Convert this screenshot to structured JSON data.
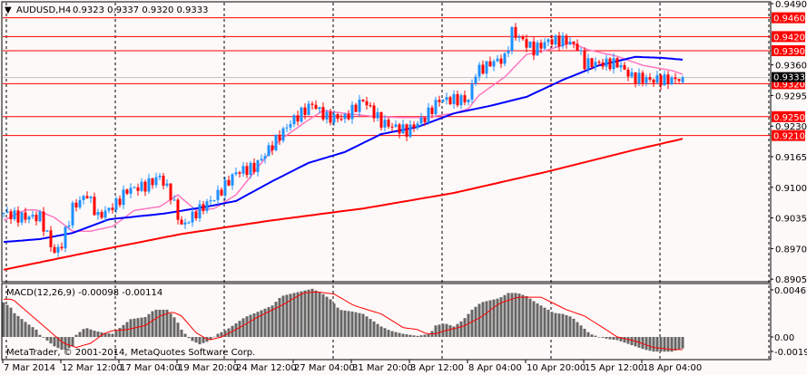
{
  "header": {
    "symbol": "AUDUSD,H4",
    "ohlc": "0.9323 0.9337 0.9320 0.9333",
    "menu_icon": "triangle-down-icon"
  },
  "macd_label": "MACD(12,26,9) -0.00098 -0.00114",
  "copyright": "MetaTrader, © 2001-2014, MetaQuotes Software Corp.",
  "colors": {
    "background": "#fdf9f8",
    "bull": "#1e90ff",
    "bear": "#ff0000",
    "ma_fast": "#ff77c0",
    "ma_mid": "#0000ff",
    "ma_slow": "#ff0000",
    "level": "#ff0000",
    "histogram": "#666666",
    "signal": "#ff0000",
    "bid_line": "#c0c0c0"
  },
  "chart_data": [
    {
      "type": "candlestick",
      "title": "AUDUSD,H4",
      "timeframe": "H4",
      "ylim": [
        0.8905,
        0.949
      ],
      "y_ticks": [
        "0.9490",
        "0.9360",
        "0.9295",
        "0.9230",
        "0.9165",
        "0.9100",
        "0.9035",
        "0.8970",
        "0.8905"
      ],
      "x_ticks": [
        "7 Mar 2014",
        "12 Mar 12:00",
        "17 Mar 04:00",
        "19 Mar 20:00",
        "24 Mar 12:00",
        "27 Mar 04:00",
        "31 Mar 20:00",
        "3 Apr 12:00",
        "8 Apr 04:00",
        "10 Apr 20:00",
        "15 Apr 12:00",
        "18 Apr 04:00"
      ],
      "bar_count": 188,
      "last_bar": {
        "open": 0.9323,
        "high": 0.9337,
        "low": 0.932,
        "close": 0.9333
      },
      "bid": "0.9333",
      "close_path": [
        [
          0,
          0.9046
        ],
        [
          4,
          0.9037
        ],
        [
          10,
          0.9037
        ],
        [
          14,
          0.896
        ],
        [
          16,
          0.8979
        ],
        [
          19,
          0.9057
        ],
        [
          23,
          0.9085
        ],
        [
          26,
          0.9037
        ],
        [
          31,
          0.9065
        ],
        [
          34,
          0.9094
        ],
        [
          39,
          0.9103
        ],
        [
          43,
          0.9123
        ],
        [
          46,
          0.9085
        ],
        [
          49,
          0.9017
        ],
        [
          53,
          0.9046
        ],
        [
          59,
          0.9085
        ],
        [
          64,
          0.9132
        ],
        [
          69,
          0.9142
        ],
        [
          74,
          0.919
        ],
        [
          79,
          0.9238
        ],
        [
          85,
          0.9277
        ],
        [
          89,
          0.9248
        ],
        [
          94,
          0.9248
        ],
        [
          99,
          0.9286
        ],
        [
          104,
          0.9238
        ],
        [
          111,
          0.9219
        ],
        [
          116,
          0.9248
        ],
        [
          120,
          0.9286
        ],
        [
          128,
          0.9286
        ],
        [
          130,
          0.9344
        ],
        [
          135,
          0.9367
        ],
        [
          138,
          0.9373
        ],
        [
          140,
          0.943
        ],
        [
          143,
          0.9411
        ],
        [
          146,
          0.9392
        ],
        [
          150,
          0.9411
        ],
        [
          155,
          0.9411
        ],
        [
          158,
          0.9398
        ],
        [
          160,
          0.9363
        ],
        [
          164,
          0.9363
        ],
        [
          169,
          0.9363
        ],
        [
          173,
          0.9334
        ],
        [
          178,
          0.9328
        ],
        [
          184,
          0.9328
        ],
        [
          187,
          0.9333
        ]
      ],
      "levels": [
        "0.9460",
        "0.9420",
        "0.9390",
        "0.9320",
        "0.9250",
        "0.9210"
      ],
      "moving_averages": [
        {
          "role": "fast",
          "points": [
            [
              0,
              0.903
            ],
            [
              6,
              0.9052
            ],
            [
              9,
              0.9052
            ],
            [
              14,
              0.9036
            ],
            [
              19,
              0.9007
            ],
            [
              24,
              0.9007
            ],
            [
              30,
              0.9017
            ],
            [
              36,
              0.9051
            ],
            [
              43,
              0.9059
            ],
            [
              48,
              0.9084
            ],
            [
              53,
              0.9051
            ],
            [
              58,
              0.9055
            ],
            [
              64,
              0.9084
            ],
            [
              70,
              0.9142
            ],
            [
              76,
              0.92
            ],
            [
              83,
              0.9238
            ],
            [
              88,
              0.9263
            ],
            [
              94,
              0.9257
            ],
            [
              101,
              0.9251
            ],
            [
              109,
              0.9248
            ],
            [
              116,
              0.9248
            ],
            [
              124,
              0.9257
            ],
            [
              128,
              0.9267
            ],
            [
              131,
              0.9296
            ],
            [
              138,
              0.9334
            ],
            [
              144,
              0.9382
            ],
            [
              150,
              0.9392
            ],
            [
              156,
              0.9407
            ],
            [
              161,
              0.9392
            ],
            [
              169,
              0.9378
            ],
            [
              176,
              0.9359
            ],
            [
              184,
              0.9348
            ],
            [
              187,
              0.934
            ]
          ]
        },
        {
          "role": "mid",
          "points": [
            [
              0,
              0.8984
            ],
            [
              10,
              0.899
            ],
            [
              19,
              0.9003
            ],
            [
              29,
              0.9032
            ],
            [
              44,
              0.9044
            ],
            [
              56,
              0.9059
            ],
            [
              64,
              0.9071
            ],
            [
              74,
              0.9113
            ],
            [
              84,
              0.9152
            ],
            [
              94,
              0.9175
            ],
            [
              104,
              0.9213
            ],
            [
              114,
              0.9228
            ],
            [
              124,
              0.9257
            ],
            [
              134,
              0.9273
            ],
            [
              144,
              0.9292
            ],
            [
              154,
              0.9328
            ],
            [
              164,
              0.9359
            ],
            [
              174,
              0.9377
            ],
            [
              181,
              0.9375
            ],
            [
              187,
              0.9371
            ]
          ]
        },
        {
          "role": "slow",
          "points": [
            [
              0,
              0.8925
            ],
            [
              24,
              0.8963
            ],
            [
              49,
              0.9001
            ],
            [
              74,
              0.903
            ],
            [
              99,
              0.9055
            ],
            [
              124,
              0.9088
            ],
            [
              149,
              0.9132
            ],
            [
              174,
              0.918
            ],
            [
              187,
              0.9203
            ]
          ]
        }
      ]
    },
    {
      "type": "bar+line",
      "title": "MACD(12,26,9)",
      "ylim": [
        -0.00194,
        0.00467
      ],
      "y_ticks": [
        "0.00467",
        "0.00",
        "-0.00194"
      ],
      "main": "-0.00098",
      "signal_value": "-0.00114",
      "histogram_path": [
        [
          0,
          0.0033
        ],
        [
          2,
          0.0028
        ],
        [
          2.5,
          0.0024
        ],
        [
          4,
          0.002
        ],
        [
          6.5,
          0.0013
        ],
        [
          9,
          0.0007
        ],
        [
          10,
          0.0002
        ],
        [
          11.5,
          -0.0002
        ],
        [
          14,
          -0.0009
        ],
        [
          16.5,
          -0.0013
        ],
        [
          19,
          -0.0009
        ],
        [
          20,
          0.0002
        ],
        [
          22.5,
          0.0009
        ],
        [
          25,
          0.0006
        ],
        [
          27.5,
          0.0004
        ],
        [
          30,
          0.0003
        ],
        [
          32.5,
          0.001
        ],
        [
          35,
          0.0017
        ],
        [
          39,
          0.0019
        ],
        [
          41.5,
          0.0026
        ],
        [
          45,
          0.0026
        ],
        [
          47.5,
          0.0017
        ],
        [
          49,
          0.0007
        ],
        [
          51.5,
          -0.0003
        ],
        [
          54,
          -0.0007
        ],
        [
          56.5,
          -0.0004
        ],
        [
          59,
          0.0003
        ],
        [
          61.5,
          0.0007
        ],
        [
          64,
          0.0013
        ],
        [
          66.5,
          0.0019
        ],
        [
          70,
          0.0024
        ],
        [
          74,
          0.003
        ],
        [
          76.5,
          0.0039
        ],
        [
          80,
          0.0042
        ],
        [
          85,
          0.0046
        ],
        [
          87.5,
          0.0042
        ],
        [
          90,
          0.0036
        ],
        [
          92.5,
          0.0026
        ],
        [
          96.5,
          0.0024
        ],
        [
          99,
          0.0022
        ],
        [
          101.5,
          0.0016
        ],
        [
          104,
          0.001
        ],
        [
          106.5,
          0.0006
        ],
        [
          110,
          0.0003
        ],
        [
          114,
          0.0001
        ],
        [
          117.5,
          0.0003
        ],
        [
          119,
          0.0011
        ],
        [
          121.5,
          0.0013
        ],
        [
          124,
          0.001
        ],
        [
          126.5,
          0.0016
        ],
        [
          129,
          0.0026
        ],
        [
          131.5,
          0.0033
        ],
        [
          134,
          0.0035
        ],
        [
          136.5,
          0.0037
        ],
        [
          139,
          0.0042
        ],
        [
          141.5,
          0.0042
        ],
        [
          144,
          0.0039
        ],
        [
          146.5,
          0.0033
        ],
        [
          149,
          0.0028
        ],
        [
          151.5,
          0.0023
        ],
        [
          154,
          0.0022
        ],
        [
          156.5,
          0.0019
        ],
        [
          159,
          0.0011
        ],
        [
          161.5,
          0.0003
        ],
        [
          164,
          0.0
        ],
        [
          166.5,
          -0.0002
        ],
        [
          169,
          -0.0003
        ],
        [
          171.5,
          -0.0006
        ],
        [
          174,
          -0.0009
        ],
        [
          176.5,
          -0.0012
        ],
        [
          179,
          -0.0014
        ],
        [
          184,
          -0.0014
        ],
        [
          187,
          -0.0011
        ]
      ],
      "signal_path": [
        [
          0,
          0.0036
        ],
        [
          2.5,
          0.0036
        ],
        [
          6.5,
          0.0024
        ],
        [
          11.5,
          0.0009
        ],
        [
          16.5,
          -0.0006
        ],
        [
          20,
          -0.001
        ],
        [
          24,
          -0.0006
        ],
        [
          27.5,
          0.0003
        ],
        [
          30,
          0.0006
        ],
        [
          34,
          0.0007
        ],
        [
          39,
          0.0011
        ],
        [
          43,
          0.002
        ],
        [
          46.5,
          0.0024
        ],
        [
          49,
          0.002
        ],
        [
          53,
          0.0004
        ],
        [
          56.5,
          -0.0003
        ],
        [
          60,
          0.0
        ],
        [
          65,
          0.0009
        ],
        [
          70,
          0.0019
        ],
        [
          76.5,
          0.003
        ],
        [
          82.5,
          0.0042
        ],
        [
          86.5,
          0.0043
        ],
        [
          91,
          0.0041
        ],
        [
          96.5,
          0.003
        ],
        [
          104,
          0.0022
        ],
        [
          110,
          0.0009
        ],
        [
          114,
          0.0007
        ],
        [
          116.5,
          0.0003
        ],
        [
          119,
          0.0003
        ],
        [
          121.5,
          0.0006
        ],
        [
          126.5,
          0.001
        ],
        [
          131.5,
          0.0019
        ],
        [
          136.5,
          0.0032
        ],
        [
          141.5,
          0.0038
        ],
        [
          148,
          0.0038
        ],
        [
          151.5,
          0.0032
        ],
        [
          155,
          0.0026
        ],
        [
          160,
          0.002
        ],
        [
          165,
          0.0009
        ],
        [
          169,
          0.0
        ],
        [
          174,
          -0.0004
        ],
        [
          179,
          -0.001
        ],
        [
          184,
          -0.0012
        ],
        [
          187,
          -0.0012
        ]
      ]
    }
  ]
}
